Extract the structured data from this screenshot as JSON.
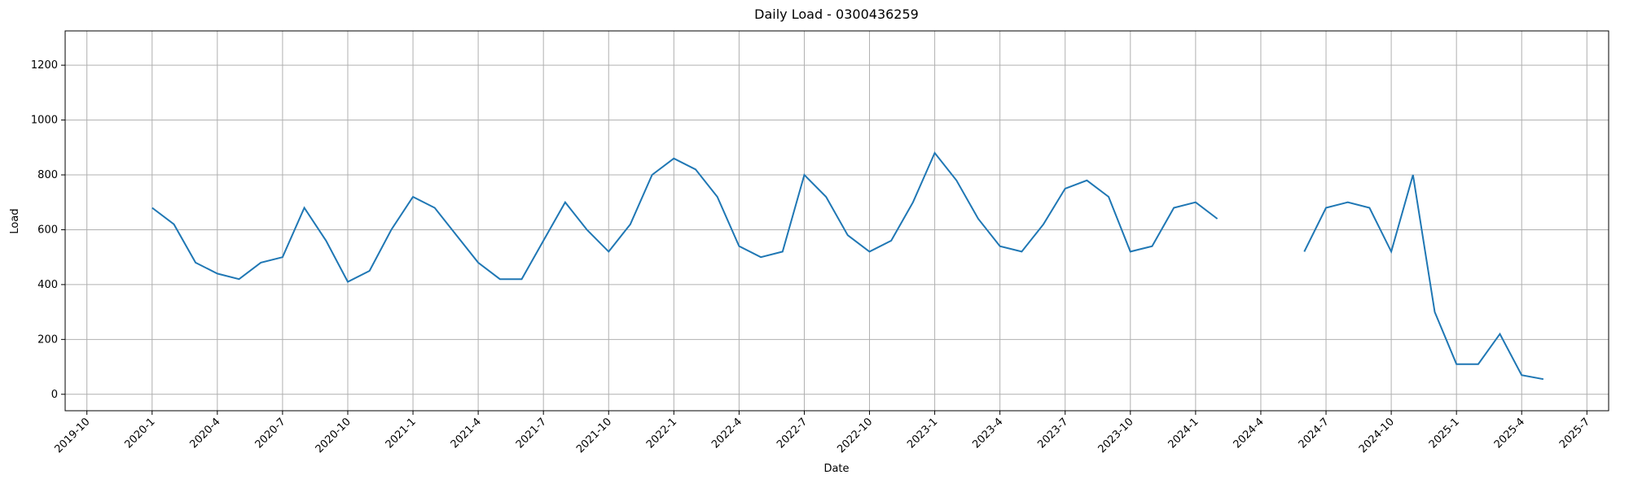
{
  "chart_data": {
    "type": "line",
    "title": "Daily Load - 0300436259",
    "x_label": "Date",
    "y_label": "Load",
    "x": [
      "2020-1",
      "2020-2",
      "2020-3",
      "2020-4",
      "2020-5",
      "2020-6",
      "2020-7",
      "2020-8",
      "2020-9",
      "2020-10",
      "2020-11",
      "2020-12",
      "2021-1",
      "2021-2",
      "2021-3",
      "2021-4",
      "2021-5",
      "2021-6",
      "2021-7",
      "2021-8",
      "2021-9",
      "2021-10",
      "2021-11",
      "2021-12",
      "2022-1",
      "2022-2",
      "2022-3",
      "2022-4",
      "2022-5",
      "2022-6",
      "2022-7",
      "2022-8",
      "2022-9",
      "2022-10",
      "2022-11",
      "2022-12",
      "2023-1",
      "2023-2",
      "2023-3",
      "2023-4",
      "2023-5",
      "2023-6",
      "2023-7",
      "2023-8",
      "2023-9",
      "2023-10",
      "2023-11",
      "2023-12",
      "2024-1",
      "2024-2",
      "2024-3",
      "2024-4",
      "2024-5",
      "2024-6",
      "2024-7",
      "2024-8",
      "2024-9",
      "2024-10",
      "2024-11",
      "2024-12",
      "2025-1",
      "2025-2",
      "2025-3",
      "2025-4",
      "2025-5"
    ],
    "series": [
      {
        "name": "Load",
        "color": "#1f77b4",
        "values": [
          680,
          620,
          480,
          440,
          420,
          480,
          500,
          680,
          560,
          410,
          450,
          600,
          720,
          680,
          580,
          480,
          420,
          420,
          560,
          700,
          600,
          520,
          620,
          800,
          860,
          820,
          720,
          540,
          500,
          520,
          800,
          720,
          580,
          520,
          560,
          700,
          880,
          780,
          640,
          540,
          520,
          620,
          750,
          780,
          720,
          520,
          540,
          680,
          700,
          640,
          null,
          null,
          null,
          520,
          680,
          700,
          680,
          520,
          800,
          300,
          110,
          110,
          220,
          70,
          55
        ]
      }
    ],
    "xlim": [
      "2019-9",
      "2025-8"
    ],
    "xticks": [
      "2019-10",
      "2020-1",
      "2020-4",
      "2020-7",
      "2020-10",
      "2021-1",
      "2021-4",
      "2021-7",
      "2021-10",
      "2022-1",
      "2022-4",
      "2022-7",
      "2022-10",
      "2023-1",
      "2023-4",
      "2023-7",
      "2023-10",
      "2024-1",
      "2024-4",
      "2024-7",
      "2024-10",
      "2025-1",
      "2025-4",
      "2025-7"
    ],
    "ylim": [
      -60,
      1325
    ],
    "yticks": [
      0,
      200,
      400,
      600,
      800,
      1000,
      1200
    ],
    "grid": true
  }
}
